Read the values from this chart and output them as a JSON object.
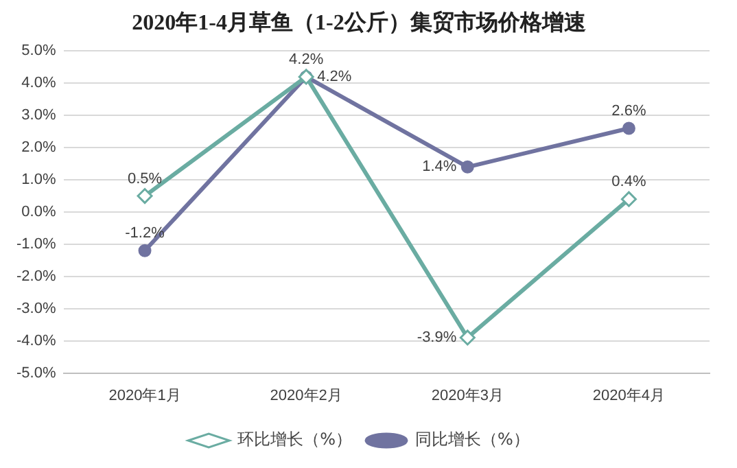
{
  "chart_data": {
    "type": "line",
    "title": "2020年1-4月草鱼（1-2公斤）集贸市场价格增速",
    "categories": [
      "2020年1月",
      "2020年2月",
      "2020年3月",
      "2020年4月"
    ],
    "series": [
      {
        "name": "环比增长（%）",
        "color": "#6aaca2",
        "marker": "diamond",
        "values": [
          0.5,
          4.2,
          -3.9,
          0.4
        ],
        "value_labels": [
          "0.5%",
          "4.2%",
          "-3.9%",
          "0.4%"
        ]
      },
      {
        "name": "同比增长（%）",
        "color": "#7073a0",
        "marker": "circle",
        "values": [
          -1.2,
          4.2,
          1.4,
          2.6
        ],
        "value_labels": [
          "-1.2%",
          "4.2%",
          "1.4%",
          "2.6%"
        ]
      }
    ],
    "ylim": [
      -5,
      5
    ],
    "yticks": [
      {
        "value": -5,
        "label": "-5.0%"
      },
      {
        "value": -4,
        "label": "-4.0%"
      },
      {
        "value": -3,
        "label": "-3.0%"
      },
      {
        "value": -2,
        "label": "-2.0%"
      },
      {
        "value": -1,
        "label": "-1.0%"
      },
      {
        "value": 0,
        "label": "0.0%"
      },
      {
        "value": 1,
        "label": "1.0%"
      },
      {
        "value": 2,
        "label": "2.0%"
      },
      {
        "value": 3,
        "label": "3.0%"
      },
      {
        "value": 4,
        "label": "4.0%"
      },
      {
        "value": 5,
        "label": "5.0%"
      }
    ],
    "grid": "y",
    "legend": "bottom",
    "line_style": "solid"
  }
}
